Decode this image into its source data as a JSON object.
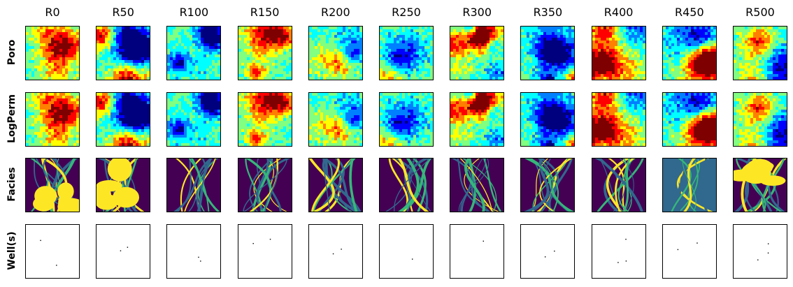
{
  "columns": [
    "R0",
    "R50",
    "R100",
    "R150",
    "R200",
    "R250",
    "R300",
    "R350",
    "R400",
    "R450",
    "R500"
  ],
  "rows": [
    "Poro",
    "LogPerm",
    "Facies",
    "Well(s)"
  ],
  "colormaps": {
    "property": "jet",
    "facies": "viridis"
  },
  "colors": {
    "jet": [
      "#00007f",
      "#0000ff",
      "#0080ff",
      "#00ffff",
      "#80ff80",
      "#ffff00",
      "#ff8000",
      "#ff0000",
      "#7f0000"
    ],
    "viridis": [
      "#440154",
      "#31688e",
      "#35b779",
      "#fde725"
    ],
    "well_marker": "#000000",
    "background": "#ffffff"
  },
  "well_counts": [
    2,
    2,
    2,
    2,
    2,
    1,
    1,
    2,
    3,
    2,
    3
  ]
}
